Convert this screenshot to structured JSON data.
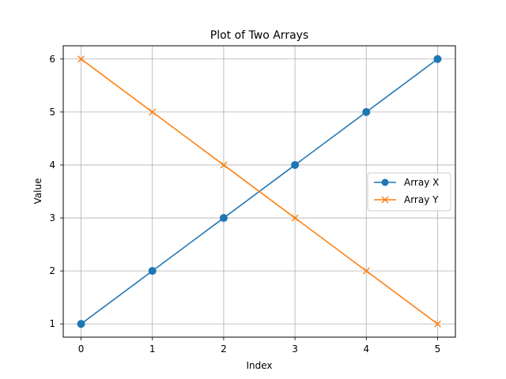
{
  "chart_data": {
    "type": "line",
    "title": "Plot of Two Arrays",
    "xlabel": "Index",
    "ylabel": "Value",
    "x": [
      0,
      1,
      2,
      3,
      4,
      5
    ],
    "xlim": [
      -0.25,
      5.25
    ],
    "ylim": [
      0.75,
      6.25
    ],
    "xticks": [
      "0",
      "1",
      "2",
      "3",
      "4",
      "5"
    ],
    "yticks": [
      "1",
      "2",
      "3",
      "4",
      "5",
      "6"
    ],
    "grid": true,
    "legend_position": "center-right",
    "series": [
      {
        "name": "Array X",
        "values": [
          1,
          2,
          3,
          4,
          5,
          6
        ],
        "color": "#1f77b4",
        "marker": "circle"
      },
      {
        "name": "Array Y",
        "values": [
          6,
          5,
          4,
          3,
          2,
          1
        ],
        "color": "#ff7f0e",
        "marker": "x"
      }
    ]
  }
}
